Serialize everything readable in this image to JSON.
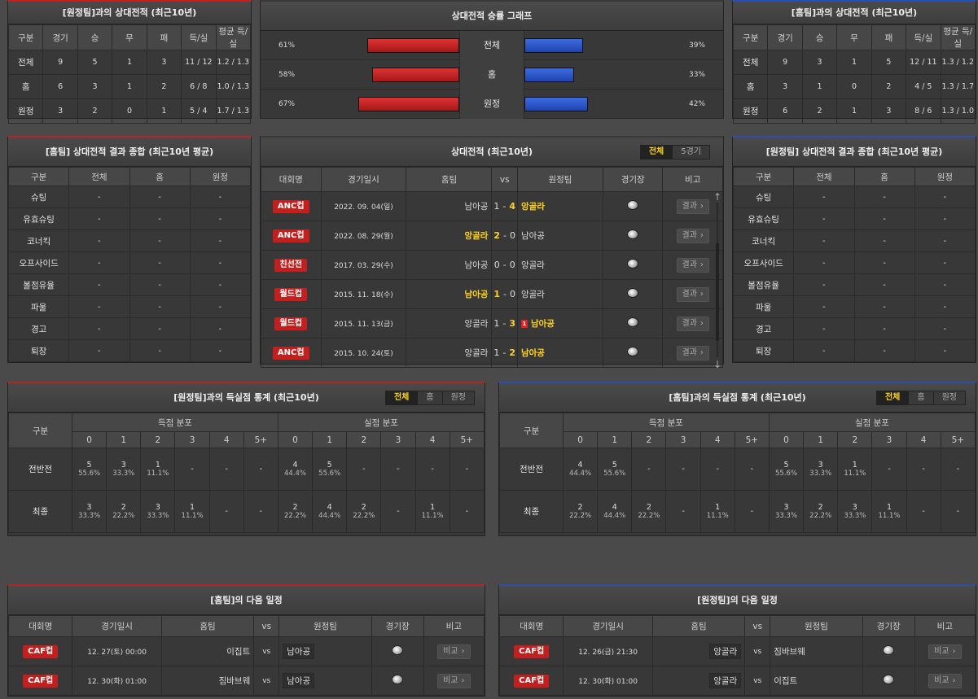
{
  "h2h_away": {
    "title": "[원정팀]과의 상대전적 (최근10년)",
    "headers": [
      "구분",
      "경기",
      "승",
      "무",
      "패",
      "득/실",
      "평균 득/실"
    ],
    "rows": [
      [
        "전체",
        "9",
        "5",
        "1",
        "3",
        "11 / 12",
        "1.2 / 1.3"
      ],
      [
        "홈",
        "6",
        "3",
        "1",
        "2",
        "6 / 8",
        "1.0 / 1.3"
      ],
      [
        "원정",
        "3",
        "2",
        "0",
        "1",
        "5 / 4",
        "1.7 / 1.3"
      ]
    ]
  },
  "h2h_home": {
    "title": "[홈팀]과의 상대전적 (최근10년)",
    "headers": [
      "구분",
      "경기",
      "승",
      "무",
      "패",
      "득/실",
      "평균 득/실"
    ],
    "rows": [
      [
        "전체",
        "9",
        "3",
        "1",
        "5",
        "12 / 11",
        "1.3 / 1.2"
      ],
      [
        "홈",
        "3",
        "1",
        "0",
        "2",
        "4 / 5",
        "1.3 / 1.7"
      ],
      [
        "원정",
        "6",
        "2",
        "1",
        "3",
        "8 / 6",
        "1.3 / 1.0"
      ]
    ]
  },
  "graph": {
    "title": "상대전적 승률 그래프",
    "rows": [
      {
        "label": "전체",
        "left_pct": "61%",
        "left": 61,
        "right_pct": "39%",
        "right": 39
      },
      {
        "label": "홈",
        "left_pct": "58%",
        "left": 58,
        "right_pct": "33%",
        "right": 33
      },
      {
        "label": "원정",
        "left_pct": "67%",
        "left": 67,
        "right_pct": "42%",
        "right": 42
      }
    ]
  },
  "summary_home": {
    "title": "[홈팀] 상대전적 결과 종합 (최근10년 평균)",
    "headers": [
      "구분",
      "전체",
      "홈",
      "원정"
    ],
    "rows": [
      [
        "슈팅",
        "-",
        "-",
        "-"
      ],
      [
        "유효슈팅",
        "-",
        "-",
        "-"
      ],
      [
        "코너킥",
        "-",
        "-",
        "-"
      ],
      [
        "오프사이드",
        "-",
        "-",
        "-"
      ],
      [
        "볼점유율",
        "-",
        "-",
        "-"
      ],
      [
        "파울",
        "-",
        "-",
        "-"
      ],
      [
        "경고",
        "-",
        "-",
        "-"
      ],
      [
        "퇴장",
        "-",
        "-",
        "-"
      ]
    ]
  },
  "summary_away": {
    "title": "[원정팀] 상대전적 결과 종합 (최근10년 평균)",
    "headers": [
      "구분",
      "전체",
      "홈",
      "원정"
    ],
    "rows": [
      [
        "슈팅",
        "-",
        "-",
        "-"
      ],
      [
        "유효슈팅",
        "-",
        "-",
        "-"
      ],
      [
        "코너킥",
        "-",
        "-",
        "-"
      ],
      [
        "오프사이드",
        "-",
        "-",
        "-"
      ],
      [
        "볼점유율",
        "-",
        "-",
        "-"
      ],
      [
        "파울",
        "-",
        "-",
        "-"
      ],
      [
        "경고",
        "-",
        "-",
        "-"
      ],
      [
        "퇴장",
        "-",
        "-",
        "-"
      ]
    ]
  },
  "recent": {
    "title": "상대전적 (최근10년)",
    "tabs": [
      "전체",
      "5경기"
    ],
    "headers": [
      "대회명",
      "경기일시",
      "홈팀",
      "vs",
      "원정팀",
      "경기장",
      "비고"
    ],
    "btn": "결과",
    "matches": [
      {
        "comp": "ANC컵",
        "date": "2022. 09. 04(일)",
        "home": "남아공",
        "hs": "1",
        "as": "4",
        "away": "앙골라",
        "win": "away",
        "card": ""
      },
      {
        "comp": "ANC컵",
        "date": "2022. 08. 29(월)",
        "home": "앙골라",
        "hs": "2",
        "as": "0",
        "away": "남아공",
        "win": "home",
        "card": ""
      },
      {
        "comp": "친선전",
        "date": "2017. 03. 29(수)",
        "home": "남아공",
        "hs": "0",
        "as": "0",
        "away": "앙골라",
        "win": "",
        "card": ""
      },
      {
        "comp": "월드컵",
        "date": "2015. 11. 18(수)",
        "home": "남아공",
        "hs": "1",
        "as": "0",
        "away": "앙골라",
        "win": "home",
        "card": ""
      },
      {
        "comp": "월드컵",
        "date": "2015. 11. 13(금)",
        "home": "앙골라",
        "hs": "1",
        "as": "3",
        "away": "남아공",
        "win": "away",
        "card": "1"
      },
      {
        "comp": "ANC컵",
        "date": "2015. 10. 24(토)",
        "home": "앙골라",
        "hs": "1",
        "as": "2",
        "away": "남아공",
        "win": "away",
        "card": ""
      }
    ]
  },
  "goals_away": {
    "title": "[원정팀]과의 득실점 통계 (최근10년)",
    "tabs": [
      "전체",
      "홈",
      "원정"
    ],
    "h_label": "구분",
    "g_for": "득점 분포",
    "g_against": "실점 분포",
    "cols": [
      "0",
      "1",
      "2",
      "3",
      "4",
      "5+"
    ],
    "rows": [
      {
        "label": "전반전",
        "for": [
          [
            "5",
            "55.6%"
          ],
          [
            "3",
            "33.3%"
          ],
          [
            "1",
            "11.1%"
          ],
          [
            "-",
            ""
          ],
          [
            "-",
            ""
          ],
          [
            "-",
            ""
          ]
        ],
        "against": [
          [
            "4",
            "44.4%"
          ],
          [
            "5",
            "55.6%"
          ],
          [
            "-",
            ""
          ],
          [
            "-",
            ""
          ],
          [
            "-",
            ""
          ],
          [
            "-",
            ""
          ]
        ]
      },
      {
        "label": "최종",
        "for": [
          [
            "3",
            "33.3%"
          ],
          [
            "2",
            "22.2%"
          ],
          [
            "3",
            "33.3%"
          ],
          [
            "1",
            "11.1%"
          ],
          [
            "-",
            ""
          ],
          [
            "-",
            ""
          ]
        ],
        "against": [
          [
            "2",
            "22.2%"
          ],
          [
            "4",
            "44.4%"
          ],
          [
            "2",
            "22.2%"
          ],
          [
            "-",
            ""
          ],
          [
            "1",
            "11.1%"
          ],
          [
            "-",
            ""
          ]
        ]
      }
    ]
  },
  "goals_home": {
    "title": "[홈팀]과의 득실점 통계 (최근10년)",
    "tabs": [
      "전체",
      "홈",
      "원정"
    ],
    "h_label": "구분",
    "g_for": "득점 분포",
    "g_against": "실점 분포",
    "cols": [
      "0",
      "1",
      "2",
      "3",
      "4",
      "5+"
    ],
    "rows": [
      {
        "label": "전반전",
        "for": [
          [
            "4",
            "44.4%"
          ],
          [
            "5",
            "55.6%"
          ],
          [
            "-",
            ""
          ],
          [
            "-",
            ""
          ],
          [
            "-",
            ""
          ],
          [
            "-",
            ""
          ]
        ],
        "against": [
          [
            "5",
            "55.6%"
          ],
          [
            "3",
            "33.3%"
          ],
          [
            "1",
            "11.1%"
          ],
          [
            "-",
            ""
          ],
          [
            "-",
            ""
          ],
          [
            "-",
            ""
          ]
        ]
      },
      {
        "label": "최종",
        "for": [
          [
            "2",
            "22.2%"
          ],
          [
            "4",
            "44.4%"
          ],
          [
            "2",
            "22.2%"
          ],
          [
            "-",
            ""
          ],
          [
            "1",
            "11.1%"
          ],
          [
            "-",
            ""
          ]
        ],
        "against": [
          [
            "3",
            "33.3%"
          ],
          [
            "2",
            "22.2%"
          ],
          [
            "3",
            "33.3%"
          ],
          [
            "1",
            "11.1%"
          ],
          [
            "-",
            ""
          ],
          [
            "-",
            ""
          ]
        ]
      }
    ]
  },
  "next_home": {
    "title": "[홈팀]의 다음 일정",
    "headers": [
      "대회명",
      "경기일시",
      "홈팀",
      "vs",
      "원정팀",
      "경기장",
      "비고"
    ],
    "btn": "비교",
    "matches": [
      {
        "comp": "CAF컵",
        "date": "12. 27(토) 00:00",
        "home": "이집트",
        "away": "남아공",
        "box": "away"
      },
      {
        "comp": "CAF컵",
        "date": "12. 30(화) 01:00",
        "home": "짐바브웨",
        "away": "남아공",
        "box": "away"
      }
    ]
  },
  "next_away": {
    "title": "[원정팀]의 다음 일정",
    "headers": [
      "대회명",
      "경기일시",
      "홈팀",
      "vs",
      "원정팀",
      "경기장",
      "비고"
    ],
    "btn": "비교",
    "matches": [
      {
        "comp": "CAF컵",
        "date": "12. 26(금) 21:30",
        "home": "앙골라",
        "away": "짐바브웨",
        "box": "home"
      },
      {
        "comp": "CAF컵",
        "date": "12. 30(화) 01:00",
        "home": "앙골라",
        "away": "이집트",
        "box": "home"
      }
    ]
  }
}
